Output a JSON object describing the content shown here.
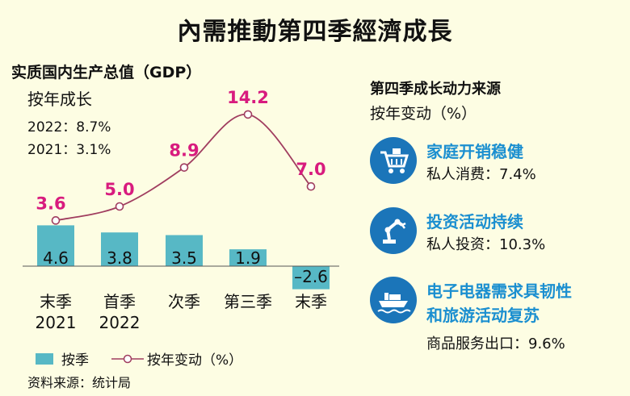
{
  "title": "內需推動第四季經濟成長",
  "gdp_header": "实质国内生产总值（GDP）",
  "gdp_subheader": "按年成长",
  "annual": [
    "2022：8.7%",
    "2021：3.1%"
  ],
  "legend": {
    "quarterly": "按季",
    "yoy": "按年变动（%）"
  },
  "source": "资料来源：统计局",
  "colors": {
    "bar": "#57b8c5",
    "line": "#a03d5f",
    "yoy_label": "#d81b7e",
    "accent_blue": "#1b75b9"
  },
  "chart_data": {
    "type": "bar",
    "categories": [
      [
        "末季",
        "2021"
      ],
      [
        "首季",
        "2022"
      ],
      [
        "次季"
      ],
      [
        "第三季"
      ],
      [
        "末季"
      ]
    ],
    "series": [
      {
        "name": "按季",
        "type": "bar",
        "values": [
          4.6,
          3.8,
          3.5,
          1.9,
          -2.6
        ]
      },
      {
        "name": "按年变动（%）",
        "type": "line",
        "values": [
          3.6,
          5.0,
          8.9,
          14.2,
          7.0
        ]
      }
    ]
  },
  "right": {
    "header": "第四季成长动力来源",
    "subheader": "按年变动（%）",
    "items": [
      {
        "icon": "shopping-cart-icon",
        "title": [
          "家庭开销稳健"
        ],
        "value": "私人消费：7.4%"
      },
      {
        "icon": "robot-arm-icon",
        "title": [
          "投资活动持续"
        ],
        "value": "私人投资：10.3%"
      },
      {
        "icon": "cargo-ship-icon",
        "title": [
          "电子电器需求具韧性",
          "和旅游活动复苏"
        ],
        "value": "商品服务出口：9.6%"
      }
    ]
  }
}
